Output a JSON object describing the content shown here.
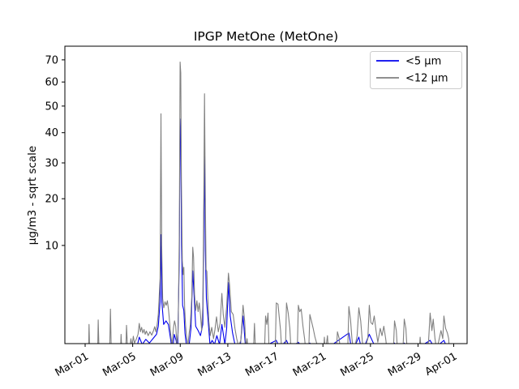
{
  "chart_data": {
    "type": "line",
    "title": "IPGP MetOne (MetOne)",
    "ylabel": "µg/m3 - sqrt scale",
    "xlabel": "",
    "yscale": "sqrt",
    "grid": false,
    "background": "#ffffff",
    "axis_color": "#000000",
    "legend": {
      "position": "upper right",
      "frame_color": "#cccccc"
    },
    "yticks": [
      10,
      20,
      30,
      40,
      50,
      60,
      70
    ],
    "ylim_top": 77,
    "xticks": [
      {
        "label": "Mar-01",
        "day": 0
      },
      {
        "label": "Mar-05",
        "day": 4
      },
      {
        "label": "Mar-09",
        "day": 8
      },
      {
        "label": "Mar-13",
        "day": 12
      },
      {
        "label": "Mar-17",
        "day": 16
      },
      {
        "label": "Mar-21",
        "day": 20
      },
      {
        "label": "Mar-25",
        "day": 24
      },
      {
        "label": "Mar-29",
        "day": 28
      },
      {
        "label": "Apr-01",
        "day": 31
      }
    ],
    "x_axis_day_range": [
      -1.7,
      32.1
    ],
    "series": [
      {
        "name": "<5 µm",
        "color": "#0000ee",
        "points": [
          [
            -1.0,
            0.01
          ],
          [
            3.4,
            0.01
          ],
          [
            4.3,
            0.05
          ],
          [
            4.55,
            0.35
          ],
          [
            4.8,
            0.15
          ],
          [
            5.1,
            0.28
          ],
          [
            5.4,
            0.18
          ],
          [
            5.7,
            0.3
          ],
          [
            6.0,
            0.45
          ],
          [
            6.15,
            0.8
          ],
          [
            6.3,
            2.5
          ],
          [
            6.38,
            12.0
          ],
          [
            6.45,
            2.5
          ],
          [
            6.6,
            0.9
          ],
          [
            6.8,
            1.1
          ],
          [
            7.0,
            0.9
          ],
          [
            7.2,
            0.25
          ],
          [
            7.33,
            0.03
          ],
          [
            7.5,
            0.45
          ],
          [
            7.65,
            0.25
          ],
          [
            7.78,
            0.05
          ],
          [
            7.92,
            8.0
          ],
          [
            7.99,
            45.0
          ],
          [
            8.05,
            38.0
          ],
          [
            8.11,
            10.0
          ],
          [
            8.2,
            2.2
          ],
          [
            8.3,
            1.8
          ],
          [
            8.4,
            0.5
          ],
          [
            8.55,
            0.08
          ],
          [
            8.75,
            0.15
          ],
          [
            8.9,
            0.7
          ],
          [
            9.05,
            6.0
          ],
          [
            9.15,
            3.5
          ],
          [
            9.3,
            0.8
          ],
          [
            9.5,
            0.6
          ],
          [
            9.7,
            0.4
          ],
          [
            9.9,
            0.9
          ],
          [
            9.98,
            14.0
          ],
          [
            10.04,
            35.0
          ],
          [
            10.11,
            9.0
          ],
          [
            10.2,
            2.8
          ],
          [
            10.35,
            1.1
          ],
          [
            10.5,
            0.15
          ],
          [
            10.68,
            0.25
          ],
          [
            10.88,
            0.15
          ],
          [
            11.08,
            0.4
          ],
          [
            11.3,
            0.15
          ],
          [
            11.5,
            0.9
          ],
          [
            11.75,
            0.15
          ],
          [
            11.9,
            0.7
          ],
          [
            12.05,
            4.5
          ],
          [
            12.2,
            1.4
          ],
          [
            12.4,
            0.5
          ],
          [
            12.6,
            0.15
          ],
          [
            12.8,
            0.08
          ],
          [
            13.0,
            0.03
          ],
          [
            13.28,
            1.4
          ],
          [
            13.5,
            0.08
          ],
          [
            13.72,
            0.01
          ],
          [
            16.08,
            0.25
          ],
          [
            16.35,
            0.08
          ],
          [
            16.94,
            0.25
          ],
          [
            17.2,
            0.08
          ],
          [
            17.93,
            0.2
          ],
          [
            18.3,
            0.08
          ],
          [
            18.9,
            0.18
          ],
          [
            19.3,
            0.03
          ],
          [
            19.6,
            0.01
          ],
          [
            22.18,
            0.5
          ],
          [
            22.45,
            0.03
          ],
          [
            23.02,
            0.35
          ],
          [
            23.3,
            0.03
          ],
          [
            23.9,
            0.45
          ],
          [
            24.3,
            0.15
          ],
          [
            24.6,
            0.03
          ],
          [
            25.95,
            0.01
          ],
          [
            26.02,
            0.18
          ],
          [
            26.3,
            0.01
          ],
          [
            26.84,
            0.18
          ],
          [
            27.1,
            0.01
          ],
          [
            29.02,
            0.25
          ],
          [
            29.4,
            0.08
          ],
          [
            30.18,
            0.25
          ],
          [
            30.6,
            0.03
          ],
          [
            30.64,
            0.01
          ]
        ]
      },
      {
        "name": "<12 µm",
        "color": "#808080",
        "points": [
          [
            -1.0,
            0.02
          ],
          [
            0.28,
            0.02
          ],
          [
            0.33,
            0.9
          ],
          [
            0.39,
            0.02
          ],
          [
            1.05,
            0.02
          ],
          [
            1.1,
            1.15
          ],
          [
            1.17,
            0.02
          ],
          [
            2.06,
            0.02
          ],
          [
            2.13,
            1.9
          ],
          [
            2.2,
            0.02
          ],
          [
            2.97,
            0.02
          ],
          [
            3.02,
            0.45
          ],
          [
            3.1,
            0.02
          ],
          [
            3.42,
            0.02
          ],
          [
            3.48,
            0.85
          ],
          [
            3.56,
            0.1
          ],
          [
            3.75,
            0.08
          ],
          [
            3.85,
            0.3
          ],
          [
            3.95,
            0.12
          ],
          [
            4.05,
            0.38
          ],
          [
            4.15,
            0.18
          ],
          [
            4.3,
            0.28
          ],
          [
            4.45,
            0.45
          ],
          [
            4.55,
            0.95
          ],
          [
            4.65,
            0.55
          ],
          [
            4.75,
            0.75
          ],
          [
            4.85,
            0.5
          ],
          [
            4.95,
            0.65
          ],
          [
            5.05,
            0.45
          ],
          [
            5.15,
            0.58
          ],
          [
            5.3,
            0.4
          ],
          [
            5.45,
            0.55
          ],
          [
            5.6,
            0.42
          ],
          [
            5.75,
            0.6
          ],
          [
            5.85,
            0.78
          ],
          [
            5.95,
            0.55
          ],
          [
            6.05,
            0.85
          ],
          [
            6.15,
            1.5
          ],
          [
            6.3,
            5.0
          ],
          [
            6.38,
            47.0
          ],
          [
            6.44,
            10.0
          ],
          [
            6.52,
            2.8
          ],
          [
            6.62,
            2.0
          ],
          [
            6.72,
            2.5
          ],
          [
            6.82,
            2.2
          ],
          [
            6.92,
            2.6
          ],
          [
            7.02,
            1.8
          ],
          [
            7.12,
            0.9
          ],
          [
            7.22,
            0.35
          ],
          [
            7.32,
            0.15
          ],
          [
            7.42,
            0.7
          ],
          [
            7.52,
            1.1
          ],
          [
            7.62,
            0.8
          ],
          [
            7.72,
            0.15
          ],
          [
            7.82,
            0.5
          ],
          [
            7.92,
            12.0
          ],
          [
            7.99,
            69.0
          ],
          [
            8.04,
            64.0
          ],
          [
            8.1,
            25.0
          ],
          [
            8.17,
            7.5
          ],
          [
            8.24,
            5.5
          ],
          [
            8.3,
            6.5
          ],
          [
            8.37,
            2.0
          ],
          [
            8.45,
            0.8
          ],
          [
            8.55,
            0.3
          ],
          [
            8.65,
            0.15
          ],
          [
            8.75,
            0.5
          ],
          [
            8.85,
            0.9
          ],
          [
            8.97,
            3.0
          ],
          [
            9.05,
            9.7
          ],
          [
            9.12,
            8.0
          ],
          [
            9.2,
            3.2
          ],
          [
            9.3,
            1.8
          ],
          [
            9.4,
            2.6
          ],
          [
            9.5,
            1.7
          ],
          [
            9.6,
            2.4
          ],
          [
            9.7,
            1.5
          ],
          [
            9.8,
            0.6
          ],
          [
            9.9,
            2.2
          ],
          [
            9.98,
            20.0
          ],
          [
            10.04,
            55.0
          ],
          [
            10.1,
            22.0
          ],
          [
            10.17,
            6.2
          ],
          [
            10.24,
            5.9
          ],
          [
            10.31,
            3.2
          ],
          [
            10.4,
            1.1
          ],
          [
            10.52,
            0.4
          ],
          [
            10.65,
            0.75
          ],
          [
            10.8,
            0.3
          ],
          [
            10.92,
            0.65
          ],
          [
            11.05,
            1.35
          ],
          [
            11.2,
            0.55
          ],
          [
            11.35,
            0.95
          ],
          [
            11.5,
            3.3
          ],
          [
            11.62,
            1.5
          ],
          [
            11.75,
            0.75
          ],
          [
            11.9,
            2.1
          ],
          [
            12.05,
            5.7
          ],
          [
            12.15,
            4.2
          ],
          [
            12.3,
            1.7
          ],
          [
            12.45,
            1.5
          ],
          [
            12.6,
            0.7
          ],
          [
            12.75,
            0.3
          ],
          [
            12.9,
            0.12
          ],
          [
            13.1,
            0.25
          ],
          [
            13.28,
            2.2
          ],
          [
            13.42,
            1.1
          ],
          [
            13.52,
            0.1
          ],
          [
            13.62,
            0.3
          ],
          [
            13.72,
            0.02
          ],
          [
            14.15,
            0.02
          ],
          [
            14.24,
            0.95
          ],
          [
            14.33,
            0.02
          ],
          [
            15.08,
            0.02
          ],
          [
            15.18,
            1.4
          ],
          [
            15.28,
            0.9
          ],
          [
            15.38,
            1.6
          ],
          [
            15.48,
            0.02
          ],
          [
            15.98,
            0.02
          ],
          [
            16.08,
            2.4
          ],
          [
            16.22,
            2.3
          ],
          [
            16.33,
            1.3
          ],
          [
            16.44,
            0.6
          ],
          [
            16.54,
            0.02
          ],
          [
            16.84,
            0.02
          ],
          [
            16.94,
            2.4
          ],
          [
            17.08,
            1.6
          ],
          [
            17.22,
            0.7
          ],
          [
            17.33,
            0.02
          ],
          [
            17.84,
            0.02
          ],
          [
            17.93,
            2.2
          ],
          [
            18.05,
            1.7
          ],
          [
            18.17,
            1.9
          ],
          [
            18.32,
            0.8
          ],
          [
            18.46,
            0.3
          ],
          [
            18.58,
            0.02
          ],
          [
            18.8,
            0.02
          ],
          [
            18.9,
            1.5
          ],
          [
            19.03,
            1.1
          ],
          [
            19.18,
            0.7
          ],
          [
            19.33,
            0.35
          ],
          [
            19.5,
            0.15
          ],
          [
            19.65,
            0.02
          ],
          [
            20.05,
            0.02
          ],
          [
            20.12,
            0.35
          ],
          [
            20.2,
            0.02
          ],
          [
            20.38,
            0.4
          ],
          [
            20.48,
            0.02
          ],
          [
            21.12,
            0.02
          ],
          [
            21.22,
            0.55
          ],
          [
            21.37,
            0.3
          ],
          [
            21.48,
            0.02
          ],
          [
            22.08,
            0.02
          ],
          [
            22.18,
            2.1
          ],
          [
            22.32,
            1.2
          ],
          [
            22.44,
            0.3
          ],
          [
            22.58,
            0.02
          ],
          [
            22.88,
            0.4
          ],
          [
            23.02,
            2.0
          ],
          [
            23.18,
            1.1
          ],
          [
            23.32,
            0.2
          ],
          [
            23.48,
            0.05
          ],
          [
            23.78,
            0.3
          ],
          [
            23.9,
            2.2
          ],
          [
            24.03,
            1.0
          ],
          [
            24.18,
            0.9
          ],
          [
            24.32,
            1.4
          ],
          [
            24.47,
            0.6
          ],
          [
            24.62,
            0.2
          ],
          [
            24.82,
            0.7
          ],
          [
            24.97,
            0.4
          ],
          [
            25.12,
            0.8
          ],
          [
            25.28,
            0.3
          ],
          [
            25.42,
            0.02
          ],
          [
            25.92,
            0.02
          ],
          [
            26.02,
            1.1
          ],
          [
            26.17,
            0.6
          ],
          [
            26.28,
            0.02
          ],
          [
            26.72,
            0.02
          ],
          [
            26.84,
            1.2
          ],
          [
            26.98,
            0.7
          ],
          [
            27.1,
            0.02
          ],
          [
            28.08,
            0.02
          ],
          [
            28.18,
            0.35
          ],
          [
            28.28,
            0.02
          ],
          [
            28.88,
            0.2
          ],
          [
            29.02,
            1.6
          ],
          [
            29.17,
            0.6
          ],
          [
            29.28,
            1.2
          ],
          [
            29.43,
            0.3
          ],
          [
            29.58,
            0.05
          ],
          [
            29.93,
            0.6
          ],
          [
            30.08,
            0.3
          ],
          [
            30.18,
            1.4
          ],
          [
            30.32,
            0.7
          ],
          [
            30.47,
            0.5
          ],
          [
            30.58,
            0.3
          ],
          [
            30.64,
            0.02
          ]
        ]
      }
    ]
  }
}
